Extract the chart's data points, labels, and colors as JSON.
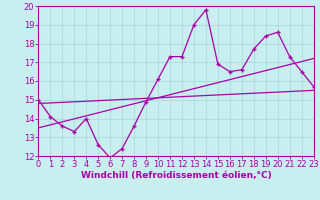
{
  "title": "",
  "xlabel": "Windchill (Refroidissement éolien,°C)",
  "ylabel": "",
  "bg_color": "#c8eef0",
  "line_color": "#aa00aa",
  "grid_color": "#aadddd",
  "xmin": 0,
  "xmax": 23,
  "ymin": 12,
  "ymax": 20,
  "data_x": [
    0,
    1,
    2,
    3,
    4,
    5,
    6,
    7,
    8,
    9,
    10,
    11,
    12,
    13,
    14,
    15,
    16,
    17,
    18,
    19,
    20,
    21,
    22,
    23
  ],
  "data_y": [
    15.0,
    14.1,
    13.6,
    13.3,
    14.0,
    12.6,
    11.9,
    12.4,
    13.6,
    14.9,
    16.1,
    17.3,
    17.3,
    19.0,
    19.8,
    16.9,
    16.5,
    16.6,
    17.7,
    18.4,
    18.6,
    17.3,
    16.5,
    15.7
  ],
  "trend1_x": [
    0,
    23
  ],
  "trend1_y": [
    14.8,
    15.5
  ],
  "trend2_x": [
    0,
    23
  ],
  "trend2_y": [
    13.5,
    17.2
  ],
  "tick_fontsize": 6,
  "label_fontsize": 6.5
}
